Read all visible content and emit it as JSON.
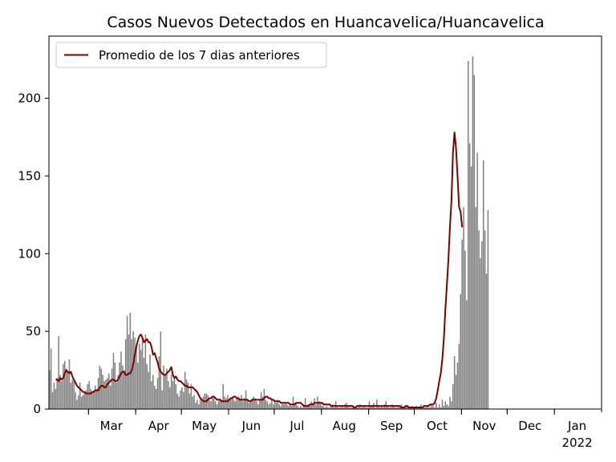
{
  "chart_data": {
    "type": "bar",
    "title": "Casos Nuevos Detectados en Huancavelica/Huancavelica",
    "xlabel": "",
    "ylabel": "",
    "ylim": [
      0,
      240
    ],
    "yticks": [
      0,
      50,
      100,
      150,
      200
    ],
    "x_range": [
      "2021-02-03",
      "2022-01-31"
    ],
    "xticks": [
      {
        "date": "2021-03-01",
        "label": "Mar",
        "sublabel": ""
      },
      {
        "date": "2021-04-01",
        "label": "Apr",
        "sublabel": ""
      },
      {
        "date": "2021-05-01",
        "label": "May",
        "sublabel": ""
      },
      {
        "date": "2021-06-01",
        "label": "Jun",
        "sublabel": ""
      },
      {
        "date": "2021-07-01",
        "label": "Jul",
        "sublabel": ""
      },
      {
        "date": "2021-08-01",
        "label": "Aug",
        "sublabel": ""
      },
      {
        "date": "2021-09-01",
        "label": "Sep",
        "sublabel": ""
      },
      {
        "date": "2021-10-01",
        "label": "Oct",
        "sublabel": ""
      },
      {
        "date": "2021-11-01",
        "label": "Nov",
        "sublabel": ""
      },
      {
        "date": "2021-12-01",
        "label": "Dec",
        "sublabel": ""
      },
      {
        "date": "2022-01-01",
        "label": "Jan",
        "sublabel": "2022"
      }
    ],
    "legend_position": "top-left",
    "colors": {
      "bars": "#808080",
      "line": "#800000"
    },
    "series": [
      {
        "name": "",
        "kind": "bar",
        "start_date": "2021-02-03",
        "values": [
          25,
          39,
          11,
          17,
          13,
          20,
          47,
          22,
          18,
          29,
          31,
          26,
          24,
          32,
          17,
          19,
          18,
          11,
          6,
          9,
          17,
          8,
          9,
          11,
          12,
          16,
          18,
          13,
          11,
          12,
          15,
          13,
          20,
          28,
          26,
          22,
          18,
          19,
          20,
          23,
          15,
          26,
          36,
          30,
          17,
          22,
          30,
          37,
          28,
          25,
          45,
          60,
          48,
          62,
          45,
          50,
          46,
          40,
          30,
          42,
          38,
          46,
          33,
          48,
          29,
          24,
          35,
          18,
          22,
          15,
          13,
          20,
          34,
          50,
          12,
          28,
          22,
          26,
          18,
          14,
          22,
          18,
          20,
          16,
          10,
          8,
          12,
          14,
          11,
          24,
          19,
          17,
          10,
          16,
          8,
          9,
          4,
          6,
          3,
          6,
          5,
          8,
          10,
          10,
          9,
          6,
          5,
          7,
          8,
          5,
          3,
          5,
          7,
          6,
          16,
          8,
          7,
          9,
          6,
          7,
          8,
          6,
          5,
          7,
          8,
          6,
          9,
          5,
          7,
          12,
          6,
          4,
          5,
          6,
          8,
          7,
          5,
          3,
          6,
          11,
          8,
          13,
          6,
          5,
          3,
          4,
          6,
          3,
          5,
          4,
          6,
          3,
          2,
          4,
          3,
          4,
          3,
          2,
          3,
          2,
          8,
          4,
          3,
          2,
          1,
          2,
          1,
          3,
          7,
          2,
          3,
          2,
          5,
          4,
          7,
          3,
          8,
          5,
          4,
          2,
          2,
          1,
          2,
          1,
          1,
          2,
          3,
          1,
          5,
          2,
          1,
          1,
          2,
          1,
          3,
          4,
          2,
          1,
          1,
          1,
          2,
          1,
          1,
          2,
          3,
          1,
          2,
          2,
          1,
          1,
          5,
          2,
          2,
          4,
          1,
          6,
          2,
          1,
          2,
          1,
          3,
          5,
          2,
          1,
          1,
          3,
          2,
          1,
          1,
          2,
          1,
          3,
          2,
          1,
          2,
          2,
          1,
          1,
          2,
          1,
          1,
          2,
          1,
          1,
          3,
          1,
          1,
          1,
          2,
          1,
          1,
          3,
          2,
          1,
          4,
          1,
          3,
          1,
          6,
          2,
          5,
          3,
          2,
          8,
          5,
          16,
          34,
          22,
          30,
          42,
          74,
          109,
          130,
          102,
          70,
          224,
          171,
          156,
          227,
          215,
          130,
          165,
          115,
          97,
          108,
          160,
          115,
          87,
          128
        ],
        "notes": ""
      },
      {
        "name": "Promedio de los 7 dias anteriores",
        "kind": "line",
        "start_date": "2021-02-07",
        "values": [
          19,
          19,
          18,
          20,
          19,
          20,
          23,
          25,
          24,
          23,
          24,
          21,
          19,
          17,
          15,
          14,
          13,
          12,
          11,
          11,
          10,
          10,
          10,
          10,
          11,
          11,
          12,
          12,
          12,
          14,
          15,
          15,
          14,
          14,
          16,
          17,
          18,
          19,
          19,
          18,
          18,
          19,
          21,
          23,
          24,
          24,
          22,
          22,
          23,
          23,
          25,
          29,
          35,
          40,
          44,
          47,
          48,
          46,
          43,
          44,
          45,
          43,
          43,
          40,
          35,
          36,
          33,
          30,
          26,
          24,
          23,
          22,
          22,
          23,
          24,
          25,
          27,
          22,
          20,
          21,
          19,
          18,
          18,
          17,
          16,
          15,
          15,
          14,
          14,
          14,
          14,
          13,
          12,
          11,
          9,
          7,
          6,
          5,
          5,
          5,
          6,
          7,
          7,
          8,
          8,
          7,
          6,
          6,
          6,
          5,
          5,
          5,
          5,
          5,
          6,
          7,
          7,
          8,
          8,
          7,
          7,
          6,
          6,
          6,
          6,
          6,
          6,
          5,
          5,
          6,
          6,
          6,
          6,
          6,
          6,
          6,
          6,
          7,
          8,
          8,
          7,
          7,
          6,
          6,
          5,
          5,
          5,
          5,
          4,
          4,
          4,
          4,
          4,
          4,
          3,
          3,
          3,
          3,
          4,
          4,
          4,
          4,
          3,
          2,
          2,
          2,
          2,
          3,
          3,
          3,
          4,
          4,
          4,
          4,
          4,
          4,
          3,
          3,
          3,
          3,
          3,
          2,
          2,
          2,
          2,
          2,
          2,
          2,
          2,
          2,
          2,
          2,
          2,
          2,
          2,
          2,
          1,
          1,
          2,
          2,
          2,
          2,
          2,
          2,
          2,
          2,
          2,
          2,
          2,
          2,
          2,
          2,
          2,
          2,
          2,
          2,
          2,
          2,
          2,
          2,
          2,
          2,
          2,
          2,
          2,
          2,
          2,
          1,
          1,
          1,
          2,
          2,
          1,
          1,
          1,
          1,
          1,
          1,
          1,
          1,
          1,
          1,
          2,
          2,
          2,
          2,
          3,
          3,
          3,
          4,
          7,
          12,
          18,
          23,
          32,
          45,
          64,
          80,
          96,
          117,
          134,
          165,
          178,
          168,
          150,
          130,
          127,
          117
        ],
        "notes": ""
      }
    ]
  }
}
